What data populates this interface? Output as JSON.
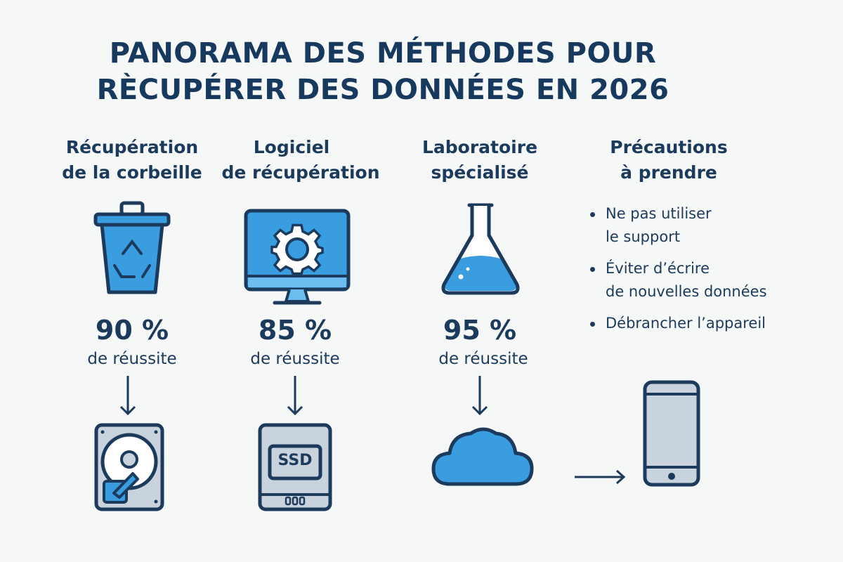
{
  "title": {
    "line1": "PANORAMA DES MÉTHODES POUR",
    "line2": "RÈCUPÉRER DES DONNÉES EN 2026"
  },
  "columns": [
    {
      "heading_line1": "Récupération",
      "heading_line2": "de la corbeille",
      "icon": "recycle-bin-icon",
      "success_rate": "90 %",
      "success_label": "de réussite",
      "target_icon": "hard-drive-icon"
    },
    {
      "heading_line1": "Logiciel",
      "heading_line2": "de récupération",
      "icon": "monitor-gear-icon",
      "success_rate": "85 %",
      "success_label": "de réussite",
      "target_icon": "ssd-icon",
      "ssd_label": "SSD"
    },
    {
      "heading_line1": "Laboratoire",
      "heading_line2": "spécialisé",
      "icon": "flask-icon",
      "success_rate": "95 %",
      "success_label": "de réussite",
      "target_icon": "cloud-icon"
    }
  ],
  "precautions": {
    "heading_line1": "Précautions",
    "heading_line2": "à prendre",
    "items": [
      {
        "line1": "Ne pas utiliser",
        "line2": "le support"
      },
      {
        "line1": "Éviter d’écrire",
        "line2": "de nouvelles données"
      },
      {
        "line1": "Débrancher l’appareil",
        "line2": ""
      }
    ],
    "target_icon": "smartphone-icon"
  },
  "colors": {
    "navy": "#1b3a5c",
    "blue": "#3a9de0",
    "light_blue": "#6cbcef",
    "gray": "#c9d3dd",
    "background": "#f6f7f7"
  }
}
